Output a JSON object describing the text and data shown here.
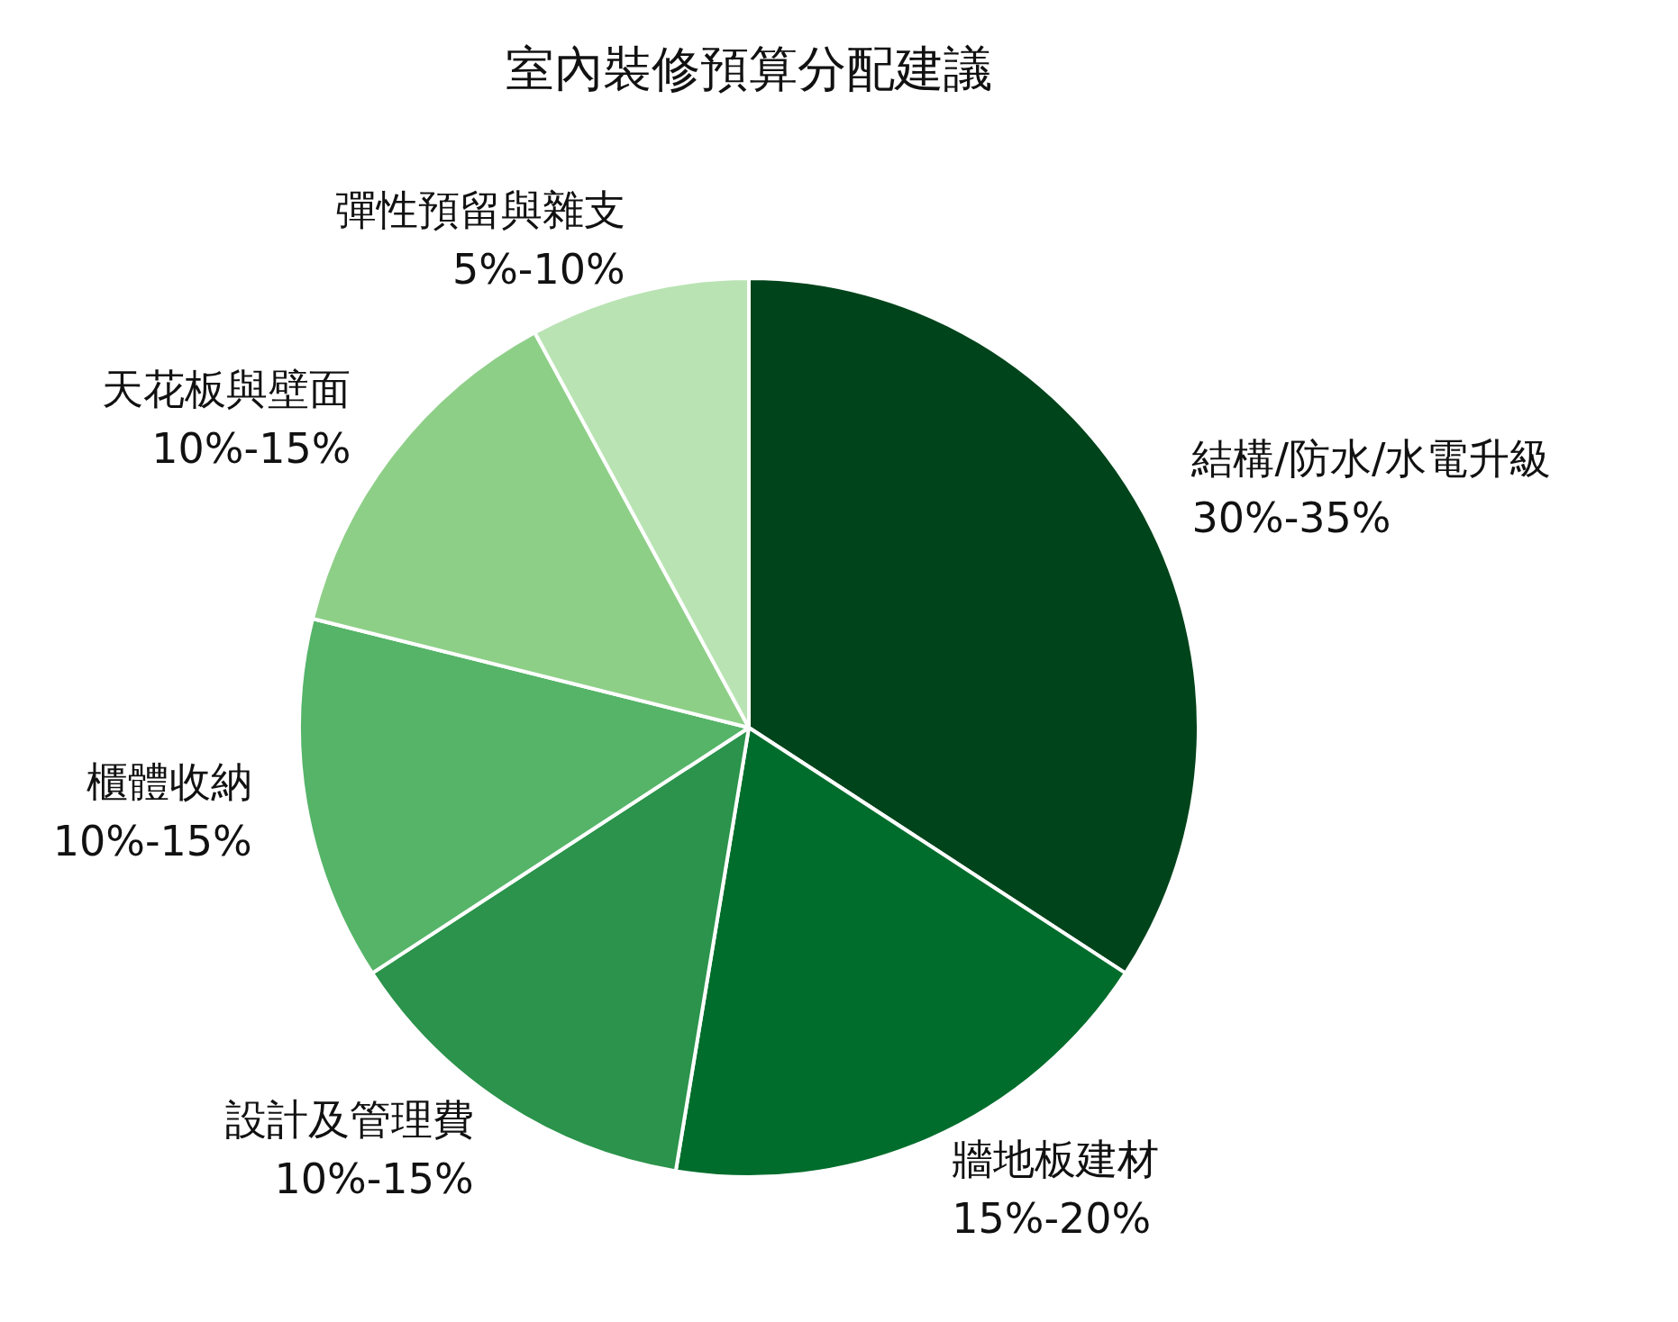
{
  "chart_data": {
    "type": "pie",
    "title": "室內裝修預算分配建議",
    "categories": [
      "結構/防水/水電升級\n30%-35%",
      "牆地板建材\n15%-20%",
      "設計及管理費\n10%-15%",
      "櫃體收納\n10%-15%",
      "天花板與壁面\n10%-15%",
      "彈性預留與雜支\n5%-10%"
    ],
    "values": [
      34.2,
      18.4,
      13.2,
      13.1,
      13.2,
      7.9
    ],
    "colors": [
      "#00441b",
      "#006d2c",
      "#2b934b",
      "#55b468",
      "#8ecf88",
      "#b9e3b3"
    ]
  }
}
